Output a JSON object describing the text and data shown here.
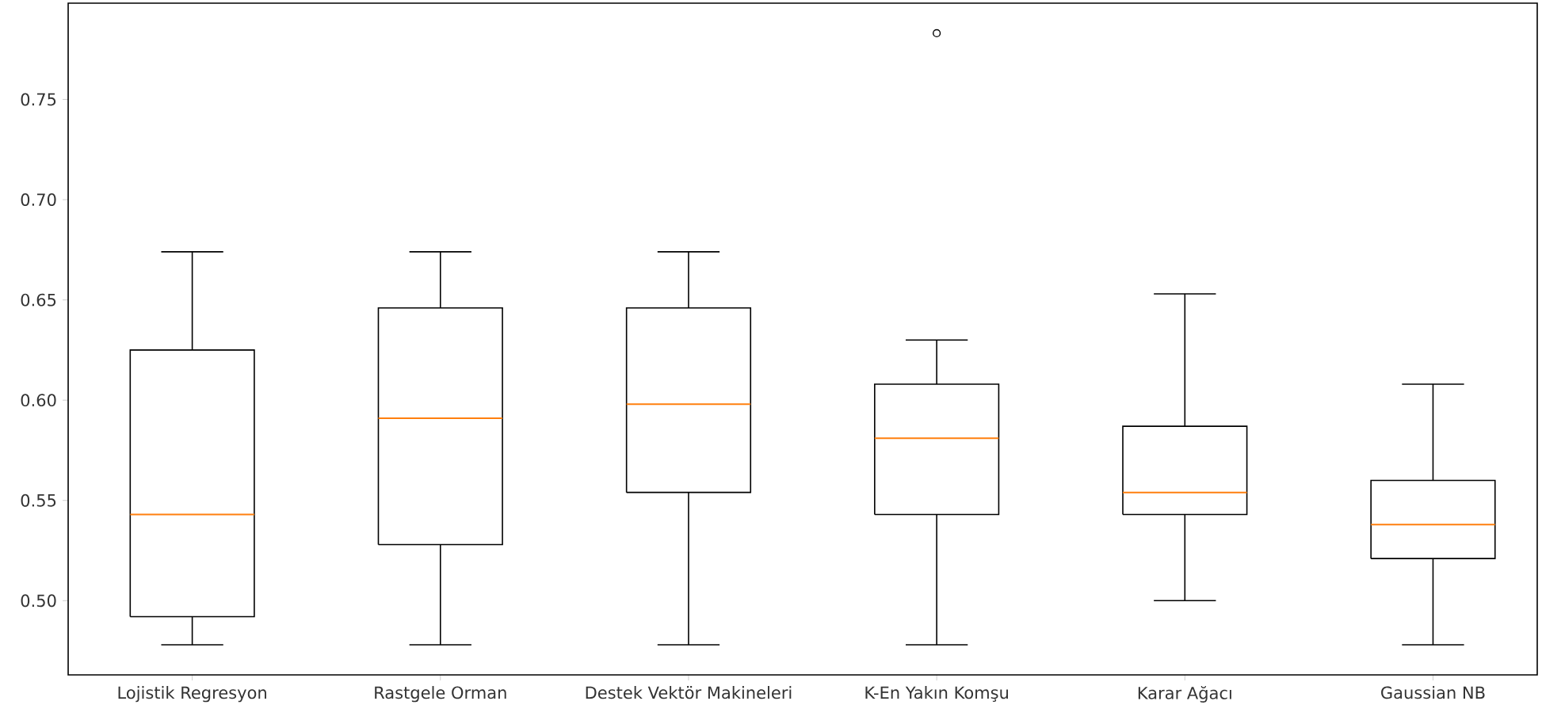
{
  "chart_data": {
    "type": "box",
    "categories": [
      "Lojistik Regresyon",
      "Rastgele Orman",
      "Destek Vektör Makineleri",
      "K-En Yakın Komşu",
      "Karar Ağacı",
      "Gaussian NB"
    ],
    "boxes": [
      {
        "low": 0.478,
        "q1": 0.492,
        "median": 0.543,
        "q3": 0.625,
        "high": 0.674
      },
      {
        "low": 0.478,
        "q1": 0.528,
        "median": 0.591,
        "q3": 0.646,
        "high": 0.674
      },
      {
        "low": 0.478,
        "q1": 0.554,
        "median": 0.598,
        "q3": 0.646,
        "high": 0.674
      },
      {
        "low": 0.478,
        "q1": 0.543,
        "median": 0.581,
        "q3": 0.608,
        "high": 0.63,
        "outliers": [
          0.783
        ]
      },
      {
        "low": 0.5,
        "q1": 0.543,
        "median": 0.554,
        "q3": 0.587,
        "high": 0.653
      },
      {
        "low": 0.478,
        "q1": 0.521,
        "median": 0.538,
        "q3": 0.56,
        "high": 0.608
      }
    ],
    "color": "#000000",
    "marker": "circle",
    "ylim": [
      0.463,
      0.798
    ],
    "yticks": [
      {
        "value": 0.5,
        "label": "0.50"
      },
      {
        "value": 0.55,
        "label": "0.55"
      },
      {
        "value": 0.6,
        "label": "0.60"
      },
      {
        "value": 0.65,
        "label": "0.65"
      },
      {
        "value": 0.7,
        "label": "0.70"
      },
      {
        "value": 0.75,
        "label": "0.75"
      }
    ]
  }
}
